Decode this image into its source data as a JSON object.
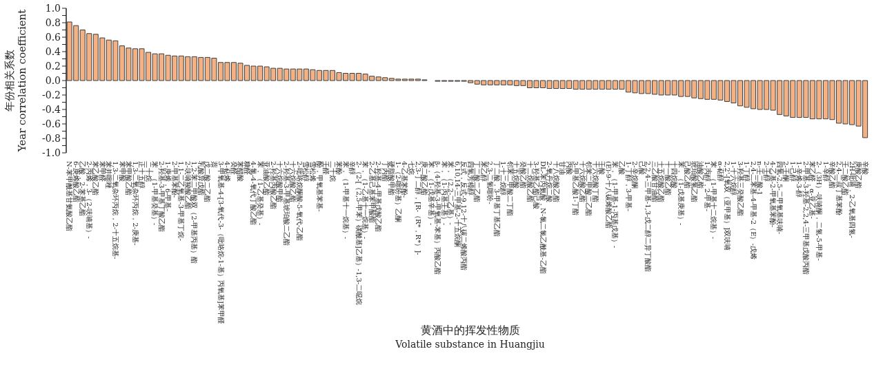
{
  "chart_data": {
    "type": "bar",
    "xlabel": "黄酒中的挥发性物质\nVolatile substance in Huangjiu",
    "ylabel": "年份相关系数\nYear correlation coefficient",
    "color": "#f4b183",
    "ylim": [
      -1.0,
      1.0
    ],
    "yticks": [
      {
        "value": -1.0,
        "label": "-1.0"
      },
      {
        "value": -0.9,
        "label": null
      },
      {
        "value": -0.8,
        "label": "-0.8"
      },
      {
        "value": -0.7,
        "label": null
      },
      {
        "value": -0.6,
        "label": "-0.6"
      },
      {
        "value": -0.5,
        "label": null
      },
      {
        "value": -0.4,
        "label": "-0.4"
      },
      {
        "value": -0.3,
        "label": null
      },
      {
        "value": -0.2,
        "label": "-0.2"
      },
      {
        "value": -0.1,
        "label": null
      },
      {
        "value": 0,
        "label": "0.0"
      },
      {
        "value": 0.1,
        "label": null
      },
      {
        "value": 0.2,
        "label": "0.2"
      },
      {
        "value": 0.3,
        "label": null
      },
      {
        "value": 0.4,
        "label": "0.4"
      },
      {
        "value": 0.5,
        "label": null
      },
      {
        "value": 0.6,
        "label": "0.6"
      },
      {
        "value": 0.7,
        "label": null
      },
      {
        "value": 0.8,
        "label": "0.8"
      },
      {
        "value": 0.9,
        "label": null
      },
      {
        "value": 1.0,
        "label": "1.0"
      }
    ],
    "categories": [
      "N-苯甲酰基甘氨酸乙酯",
      "6-庚烯酸乙酯",
      "乙酸，2-苯基乙酯",
      "2-丙烯，3-（2-呋喃基）-",
      "苯乙酸乙酯",
      "苯甲醛",
      "苯并噻唑",
      "1,3-二氧杂环丙烷，2-十五烷基-",
      "苯甲酸",
      "苯甲酸乙酯",
      "1,3-二氧杂环丙烷，2-庚基-",
      "正十五醇",
      "二十烷",
      "苯，（1-甲基癸基）-",
      "2-羟基-3-甲基丁酸乙酯",
      "1-庚烯，6-甲基-",
      "2-甲基苯酚-",
      "1,1-二乙氧基-3-甲基丁烷-",
      "2-呋喃羧酸乙酯",
      "1,2-苯二甲酸双（2-甲基丙基）酯",
      "乳酸异戊酯",
      "戊二酸二乙酯",
      "萘",
      "3-甲氧基-4-[3-氧代-3-（吡咯烷-1-基）丙氧基]苯甲醛",
      "4-萜烯",
      "癸醛",
      "苯醋酸",
      "糠醛",
      "4-氯-4-氧代丁酸乙酯",
      "苯，（1-乙基癸基）-",
      "亚油酸乙酯",
      "2-羟基丙酸乙酯",
      "十六烷酸甲酯",
      "2-羟基-3-甲基琥珀酸二乙酯",
      "十六烷酸乙酯",
      "2-吡咯烷酮酸-5-氧代-乙酯",
      "雪松醇",
      "雪松烯",
      "酚，甲氧基苯基-",
      "壬醛",
      "二十烷",
      "苯酚",
      "苯，（1-甲基十一烷基）-",
      "辛醇",
      "2-（2-[（2,5-甲苯）磺酰基]乙基）-1,3-二噁烷",
      "苯，（1-乙基十一烷基）-",
      "2-乙基己基苯甲酸酯",
      "2-羟基-4-甲基戊酸乙酯",
      "丁内酯",
      "硬脂酸甲酯",
      "1-（2-噻吩基）乙酮",
      "4-乙基苯酚-",
      "七烷",
      "2,3-丁二醇，[R-（R*，R*）]-",
      "庚二酸乙酯",
      "苯，（1-戊基辛基）-",
      "β-（4-羟基-3-甲氧基-苯基）丙酸乙酯",
      "苯，（1-丙基壬基）-",
      "苯，（2,2-二乙基）-",
      "6,10,14-三甲基-2-十五烷酮",
      "反式，反式-9,12-十八碳二烯酸丙酯",
      "四氢芳樟醇",
      "丁二酸二乙酯",
      "苯乙醇",
      "2,3-二氢噻吩-",
      "丁二酸，3-甲基丁基乙酯",
      "1-十二烷醇",
      "邻苯二甲酸二丁酯",
      "十五烷酸",
      "癸酸乙酯",
      "十二烷酸乙酯",
      "3-羟基乙酯己酸",
      "DL-苯丙氨酸，N-氯二氯乙酰基-乙酯",
      "2-氧丹烷二酸",
      "十八烷酸乙酯",
      "甘油",
      "丙酸",
      "3-甲基乙酸1-丁酯",
      "十六烷酸乙酯",
      "邻苯二甲酸二乙酯",
      "十六烷酸丁酯",
      "壬酸",
      "(E)-9-十八碳烯酸乙酯",
      "苯，（1-甲基-1-丙基戊基）-",
      "乙酸",
      "1-丁醇，3-甲基-",
      "2-辛烷酮",
      "己酸",
      "2,2,4-三甲基-1,3-戊二醇二异丁酸酯",
      "三乙酸甘油酯",
      "十五烷酸乙酯",
      "十一酸乙酯",
      "十四烷酸",
      "苯，（1-戊基庚基）-",
      "己酸乙酯",
      "琥珀酸氢乙酯",
      "油酸乙酯",
      "1-丙醇，2-甲基-",
      "苯，（1-甲基十二烷基）-",
      "α-萜醇",
      "2,2'-[氧双（亚甲基）]双呋喃",
      "1-十六烷醇",
      "3-羟基三癸酸乙酯",
      "1-丁醇",
      "2,4-二苯基-4-甲基-2（E）-戊烯",
      "n-壬二酸-1",
      "2-壬醇",
      "4-乙基-2-甲氧基苯酚-",
      "四氢-2,5-二甲氧基呋喃-",
      "2-壬酮",
      "1-己醇",
      "1-辛烯-3-醇",
      "2-甲基-3-羟基-2,2,4-三甲基戊酸丙酯",
      "苯乙醛，α-亚乙基-",
      "2-（3H）-呋喃酮，二氢-5-甲基-",
      "1-辛醇",
      "辛酸乙酯",
      "2,4-二叔丁基苯酚",
      "壬二酸乙酯",
      "2H-吡喃，2-乙氧基四氢-",
      "庚酸乙酯",
      "辛酸"
    ],
    "values": [
      0.81,
      0.76,
      0.7,
      0.65,
      0.64,
      0.59,
      0.56,
      0.55,
      0.48,
      0.45,
      0.44,
      0.44,
      0.39,
      0.37,
      0.37,
      0.35,
      0.34,
      0.34,
      0.33,
      0.33,
      0.32,
      0.32,
      0.31,
      0.25,
      0.25,
      0.25,
      0.24,
      0.21,
      0.2,
      0.2,
      0.19,
      0.17,
      0.17,
      0.16,
      0.16,
      0.16,
      0.16,
      0.15,
      0.14,
      0.14,
      0.14,
      0.11,
      0.1,
      0.1,
      0.1,
      0.09,
      0.06,
      0.05,
      0.04,
      0.03,
      0.02,
      0.02,
      0.02,
      0.02,
      0.01,
      0,
      -0.01,
      -0.01,
      -0.01,
      -0.01,
      -0.01,
      -0.03,
      -0.05,
      -0.06,
      -0.06,
      -0.06,
      -0.06,
      -0.06,
      -0.07,
      -0.07,
      -0.1,
      -0.1,
      -0.1,
      -0.11,
      -0.11,
      -0.11,
      -0.11,
      -0.12,
      -0.12,
      -0.12,
      -0.12,
      -0.12,
      -0.12,
      -0.12,
      -0.12,
      -0.16,
      -0.17,
      -0.18,
      -0.18,
      -0.19,
      -0.2,
      -0.2,
      -0.2,
      -0.22,
      -0.22,
      -0.24,
      -0.25,
      -0.26,
      -0.26,
      -0.27,
      -0.29,
      -0.31,
      -0.35,
      -0.37,
      -0.39,
      -0.4,
      -0.4,
      -0.41,
      -0.47,
      -0.49,
      -0.51,
      -0.51,
      -0.51,
      -0.53,
      -0.53,
      -0.53,
      -0.54,
      -0.59,
      -0.6,
      -0.61,
      -0.63,
      -0.79
    ]
  }
}
